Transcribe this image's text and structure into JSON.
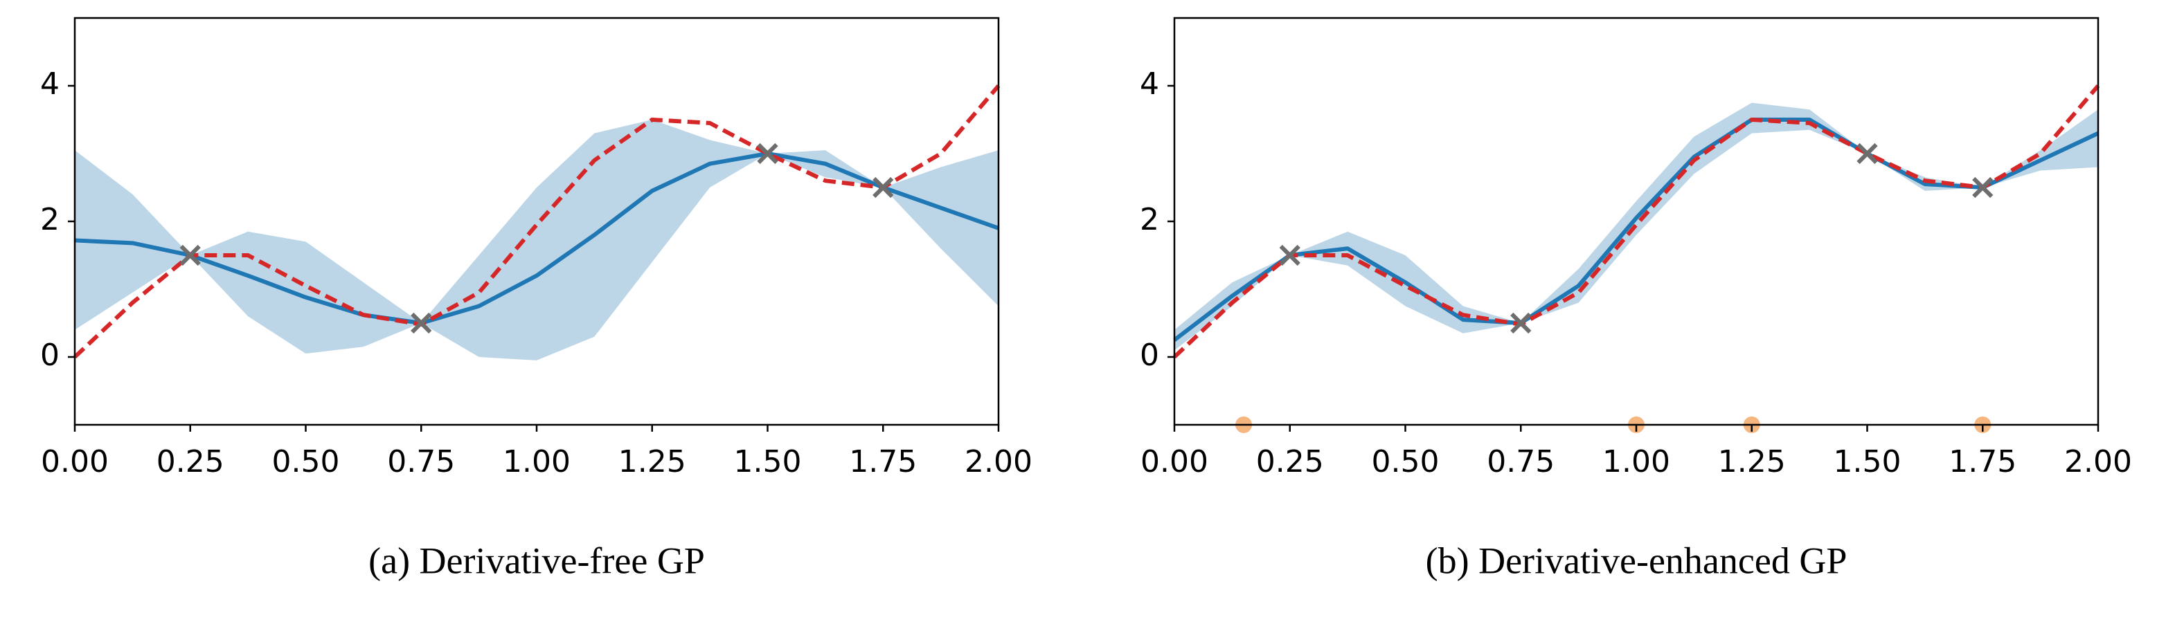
{
  "chart_data": [
    {
      "type": "line",
      "caption": "(a) Derivative-free GP",
      "x": [
        0,
        0.125,
        0.25,
        0.375,
        0.5,
        0.625,
        0.75,
        0.875,
        1,
        1.125,
        1.25,
        1.375,
        1.5,
        1.625,
        1.75,
        1.875,
        2
      ],
      "band": {
        "color": "#bcd6e8",
        "lower": [
          0.4,
          0.95,
          1.5,
          0.6,
          0.05,
          0.15,
          0.5,
          0.0,
          -0.05,
          0.3,
          1.4,
          2.5,
          3.0,
          2.65,
          2.5,
          1.6,
          0.75
        ],
        "upper": [
          3.05,
          2.4,
          1.5,
          1.85,
          1.7,
          1.1,
          0.5,
          1.5,
          2.5,
          3.3,
          3.5,
          3.2,
          3.0,
          3.05,
          2.5,
          2.8,
          3.05
        ]
      },
      "series": [
        {
          "color": "#1f77b4",
          "style": "solid",
          "values": [
            1.72,
            1.68,
            1.5,
            1.2,
            0.88,
            0.62,
            0.5,
            0.75,
            1.2,
            1.8,
            2.45,
            2.85,
            3.0,
            2.85,
            2.5,
            2.2,
            1.9
          ]
        },
        {
          "color": "#d62728",
          "style": "dashed",
          "values": [
            0,
            0.8,
            1.5,
            1.5,
            1.05,
            0.62,
            0.48,
            0.95,
            1.95,
            2.9,
            3.5,
            3.45,
            3.0,
            2.6,
            2.5,
            3.0,
            4.0
          ]
        }
      ],
      "observations": {
        "color": "#6d6d6d",
        "x": [
          0.25,
          0.75,
          1.5,
          1.75
        ],
        "y": [
          1.5,
          0.5,
          3.0,
          2.5
        ]
      },
      "xlim": [
        0,
        2
      ],
      "ylim": [
        -1,
        5
      ],
      "xticks": [
        {
          "value": 0,
          "label": "0.00"
        },
        {
          "value": 0.25,
          "label": "0.25"
        },
        {
          "value": 0.5,
          "label": "0.50"
        },
        {
          "value": 0.75,
          "label": "0.75"
        },
        {
          "value": 1,
          "label": "1.00"
        },
        {
          "value": 1.25,
          "label": "1.25"
        },
        {
          "value": 1.5,
          "label": "1.50"
        },
        {
          "value": 1.75,
          "label": "1.75"
        },
        {
          "value": 2,
          "label": "2.00"
        }
      ],
      "yticks": [
        0,
        2,
        4
      ]
    },
    {
      "type": "line",
      "caption": "(b) Derivative-enhanced GP",
      "x": [
        0,
        0.125,
        0.25,
        0.375,
        0.5,
        0.625,
        0.75,
        0.875,
        1,
        1.125,
        1.25,
        1.375,
        1.5,
        1.625,
        1.75,
        1.875,
        2
      ],
      "band": {
        "color": "#bcd6e8",
        "lower": [
          0.1,
          0.75,
          1.5,
          1.35,
          0.75,
          0.35,
          0.5,
          0.8,
          1.8,
          2.7,
          3.3,
          3.35,
          3.0,
          2.45,
          2.5,
          2.75,
          2.8
        ],
        "upper": [
          0.4,
          1.1,
          1.5,
          1.85,
          1.5,
          0.75,
          0.5,
          1.3,
          2.3,
          3.25,
          3.75,
          3.65,
          3.0,
          2.65,
          2.5,
          3.05,
          3.65
        ]
      },
      "series": [
        {
          "color": "#1f77b4",
          "style": "solid",
          "values": [
            0.25,
            0.9,
            1.5,
            1.6,
            1.1,
            0.55,
            0.5,
            1.05,
            2.05,
            2.95,
            3.5,
            3.5,
            3.0,
            2.55,
            2.5,
            2.9,
            3.3
          ]
        },
        {
          "color": "#d62728",
          "style": "dashed",
          "values": [
            0,
            0.8,
            1.5,
            1.5,
            1.05,
            0.62,
            0.48,
            0.95,
            1.95,
            2.9,
            3.5,
            3.45,
            3.0,
            2.6,
            2.5,
            3.0,
            4.0
          ]
        }
      ],
      "observations": {
        "color": "#6d6d6d",
        "x": [
          0.25,
          0.75,
          1.5,
          1.75
        ],
        "y": [
          1.5,
          0.5,
          3.0,
          2.5
        ]
      },
      "derivative_points": {
        "color": "#f5b67f",
        "x": [
          0.15,
          1.0,
          1.25,
          1.75
        ],
        "y": [
          -1,
          -1,
          -1,
          -1
        ]
      },
      "xlim": [
        0,
        2
      ],
      "ylim": [
        -1,
        5
      ],
      "xticks": [
        {
          "value": 0,
          "label": "0.00"
        },
        {
          "value": 0.25,
          "label": "0.25"
        },
        {
          "value": 0.5,
          "label": "0.50"
        },
        {
          "value": 0.75,
          "label": "0.75"
        },
        {
          "value": 1,
          "label": "1.00"
        },
        {
          "value": 1.25,
          "label": "1.25"
        },
        {
          "value": 1.5,
          "label": "1.50"
        },
        {
          "value": 1.75,
          "label": "1.75"
        },
        {
          "value": 2,
          "label": "2.00"
        }
      ],
      "yticks": [
        0,
        2,
        4
      ]
    }
  ]
}
